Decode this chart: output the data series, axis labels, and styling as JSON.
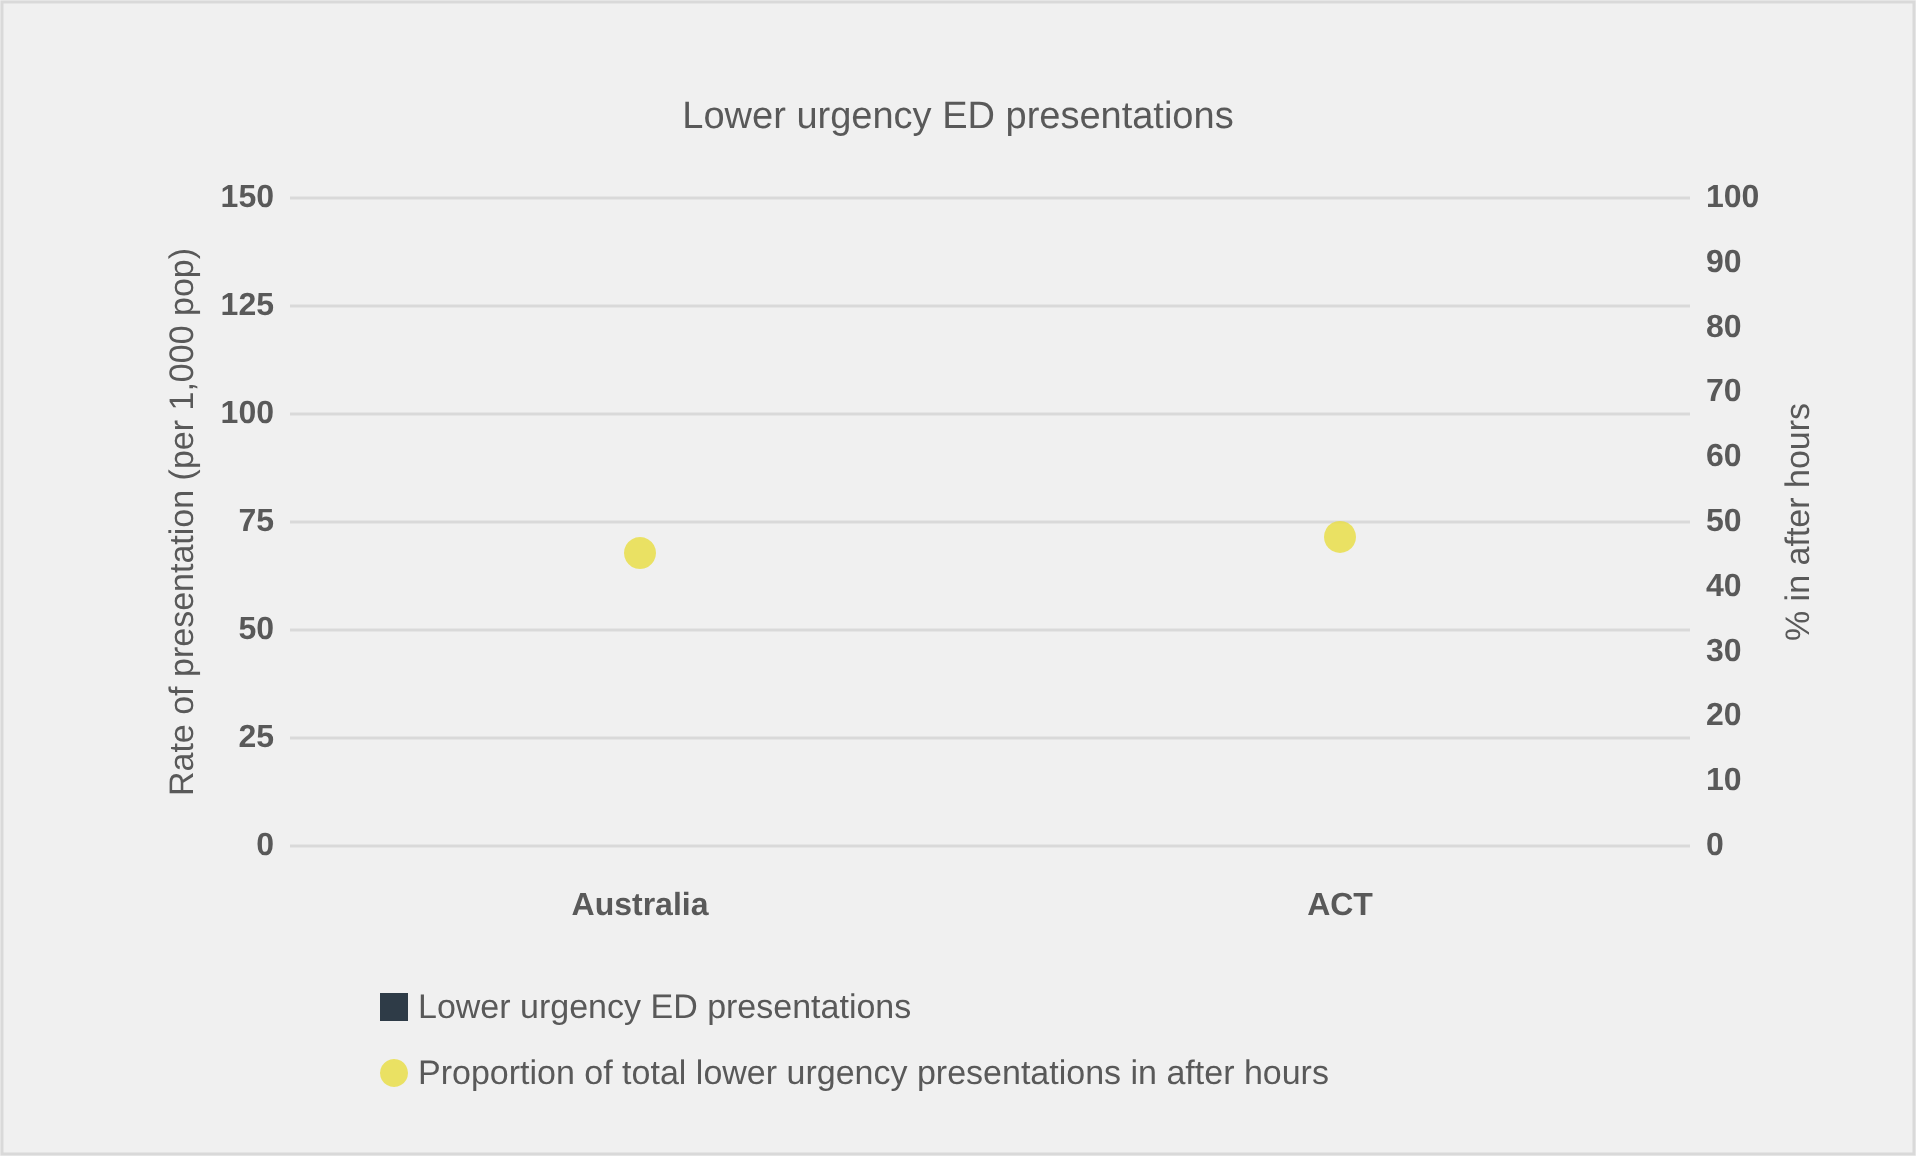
{
  "chart_data": {
    "type": "bar",
    "title": "Lower urgency ED presentations",
    "categories": [
      "Australia",
      "ACT"
    ],
    "ylabel": "Rate of presentation (per 1,000 pop)",
    "y2label": "% in after hours",
    "ylim": [
      0,
      150
    ],
    "yticks": [
      0,
      25,
      50,
      75,
      100,
      125,
      150
    ],
    "y2lim": [
      0,
      100
    ],
    "y2ticks": [
      0,
      10,
      20,
      30,
      40,
      50,
      60,
      70,
      80,
      90,
      100
    ],
    "grid": "y",
    "legend": "bottom left",
    "marker": "circle",
    "series": [
      {
        "name": "Lower urgency ED presentations",
        "color": "#2e3b47",
        "values": [
          null,
          null
        ]
      },
      {
        "name": "Proportion of total lower urgency presentations in after hours",
        "type": "scatter",
        "axis": "y2",
        "color": "#e8dd40",
        "x": [
          "Australia",
          "ACT"
        ],
        "values": [
          45.2,
          47.7
        ]
      }
    ]
  }
}
